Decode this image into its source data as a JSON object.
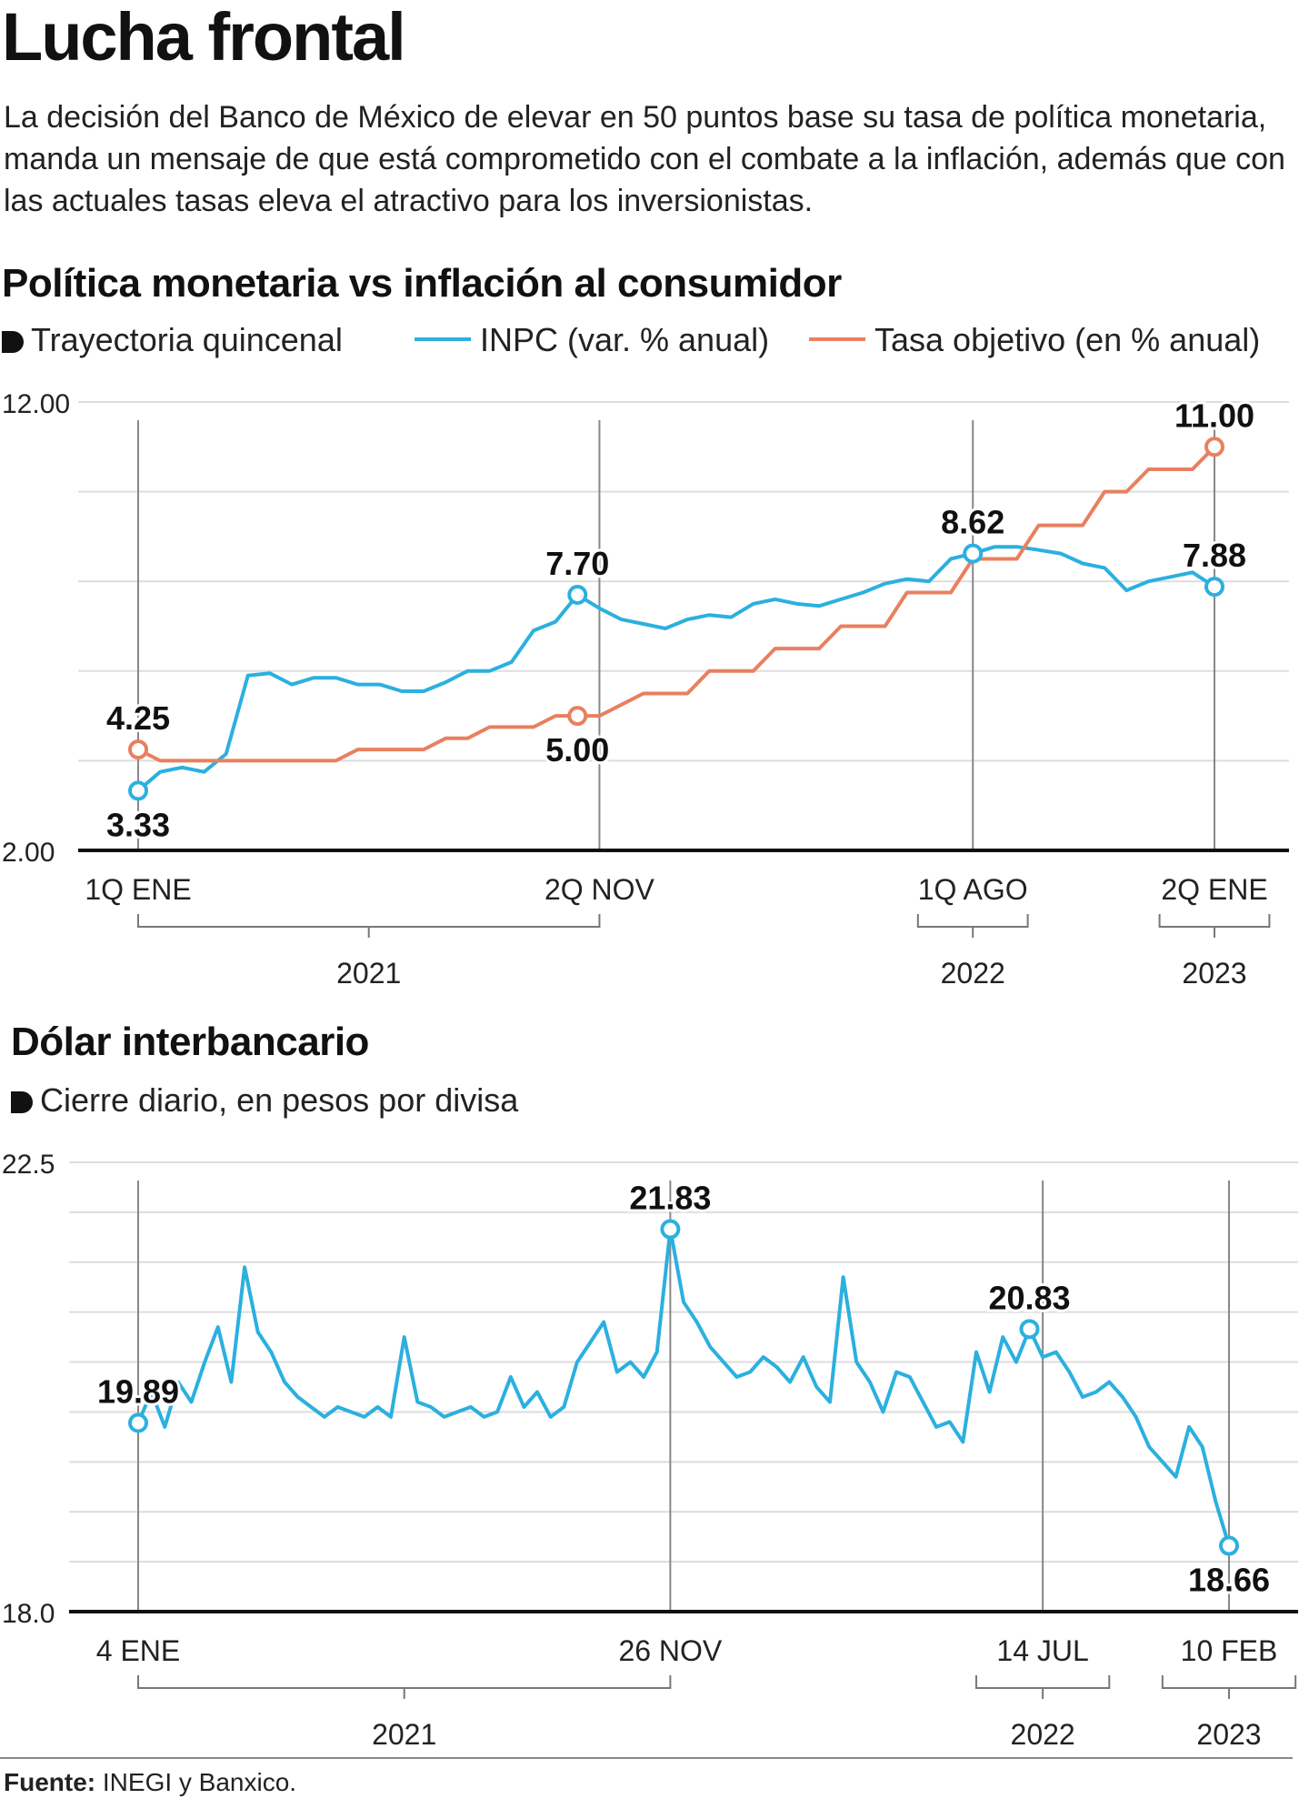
{
  "header": {
    "title": "Lucha frontal",
    "subtitle": "La decisión del Banco de México de elevar en 50 puntos base su tasa de política monetaria, manda un mensaje de que está comprometido con el combate a la inflación, además que con las actuales tasas eleva el atractivo para los inversionistas."
  },
  "source": {
    "label": "Fuente:",
    "text": "INEGI y Banxico."
  },
  "colors": {
    "inpc": "#2bb0df",
    "tasa": "#e8805f",
    "dolar": "#2bb0df",
    "axis": "#111111",
    "grid": "#dddddd"
  },
  "chart_data": [
    {
      "type": "line",
      "title": "Política monetaria vs inflación al consumidor",
      "note": "Trayectoria quincenal",
      "ylim": [
        2,
        12
      ],
      "ytick_labels": [
        "12.00",
        "2.00"
      ],
      "grid": true,
      "legend_position": "top",
      "x_count": 50,
      "x_ticks": [
        {
          "index": 0,
          "label": "1Q ENE"
        },
        {
          "index": 21,
          "label": "2Q NOV"
        },
        {
          "index": 38,
          "label": "1Q AGO"
        },
        {
          "index": 49,
          "label": "2Q ENE"
        }
      ],
      "year_groups": [
        {
          "label": "2021",
          "from": 0,
          "to": 21
        },
        {
          "label": "2022",
          "from": 35.5,
          "to": 40.5
        },
        {
          "label": "2023",
          "from": 46.5,
          "to": 51.5
        }
      ],
      "series": [
        {
          "name": "INPC (var. % anual)",
          "values": [
            3.33,
            3.75,
            3.85,
            3.75,
            4.15,
            5.9,
            5.95,
            5.7,
            5.85,
            5.85,
            5.7,
            5.7,
            5.55,
            5.55,
            5.75,
            6.0,
            6.0,
            6.2,
            6.9,
            7.1,
            7.7,
            7.4,
            7.15,
            7.05,
            6.95,
            7.15,
            7.25,
            7.2,
            7.5,
            7.6,
            7.5,
            7.45,
            7.6,
            7.75,
            7.95,
            8.05,
            8.0,
            8.5,
            8.62,
            8.77,
            8.77,
            8.7,
            8.62,
            8.4,
            8.3,
            7.8,
            8.0,
            8.1,
            8.2,
            7.88
          ],
          "labels": [
            {
              "index": 0,
              "text": "3.33",
              "pos": "below"
            },
            {
              "index": 20,
              "text": "7.70",
              "pos": "above"
            },
            {
              "index": 38,
              "text": "8.62",
              "pos": "above"
            },
            {
              "index": 49,
              "text": "7.88",
              "pos": "above"
            }
          ]
        },
        {
          "name": "Tasa objetivo (en % anual)",
          "values": [
            4.25,
            4.0,
            4.0,
            4.0,
            4.0,
            4.0,
            4.0,
            4.0,
            4.0,
            4.0,
            4.25,
            4.25,
            4.25,
            4.25,
            4.5,
            4.5,
            4.75,
            4.75,
            4.75,
            5.0,
            5.0,
            5.0,
            5.25,
            5.5,
            5.5,
            5.5,
            6.0,
            6.0,
            6.0,
            6.5,
            6.5,
            6.5,
            7.0,
            7.0,
            7.0,
            7.75,
            7.75,
            7.75,
            8.5,
            8.5,
            8.5,
            9.25,
            9.25,
            9.25,
            10.0,
            10.0,
            10.5,
            10.5,
            10.5,
            11.0
          ],
          "labels": [
            {
              "index": 0,
              "text": "4.25",
              "pos": "above"
            },
            {
              "index": 20,
              "text": "5.00",
              "pos": "below"
            },
            {
              "index": 49,
              "text": "11.00",
              "pos": "above"
            }
          ]
        }
      ]
    },
    {
      "type": "line",
      "title": "Dólar interbancario",
      "note": "Cierre diario, en pesos por divisa",
      "ylim": [
        18.0,
        22.5
      ],
      "ytick_labels": [
        "22.5",
        "18.0"
      ],
      "grid": true,
      "x_count": 83,
      "x_ticks": [
        {
          "index": 0,
          "label": "4 ENE"
        },
        {
          "index": 40,
          "label": "26 NOV"
        },
        {
          "index": 68,
          "label": "14 JUL"
        },
        {
          "index": 82,
          "label": "10 FEB"
        }
      ],
      "year_groups": [
        {
          "label": "2021",
          "from": 0,
          "to": 40
        },
        {
          "label": "2022",
          "from": 63,
          "to": 73
        },
        {
          "index_note": "",
          "label": "2023",
          "from": 77,
          "to": 87
        }
      ],
      "series": [
        {
          "name": "",
          "values": [
            19.89,
            20.2,
            19.85,
            20.3,
            20.1,
            20.5,
            20.85,
            20.3,
            21.45,
            20.8,
            20.6,
            20.3,
            20.15,
            20.05,
            19.95,
            20.05,
            20.0,
            19.95,
            20.05,
            19.95,
            20.75,
            20.1,
            20.05,
            19.95,
            20.0,
            20.05,
            19.95,
            20.0,
            20.35,
            20.05,
            20.2,
            19.95,
            20.05,
            20.5,
            20.7,
            20.9,
            20.4,
            20.5,
            20.35,
            20.6,
            21.83,
            21.1,
            20.9,
            20.65,
            20.5,
            20.35,
            20.4,
            20.55,
            20.45,
            20.3,
            20.55,
            20.25,
            20.1,
            21.35,
            20.5,
            20.3,
            20.0,
            20.4,
            20.35,
            20.1,
            19.85,
            19.9,
            19.7,
            20.6,
            20.2,
            20.75,
            20.5,
            20.83,
            20.55,
            20.6,
            20.4,
            20.15,
            20.2,
            20.3,
            20.15,
            19.95,
            19.65,
            19.5,
            19.35,
            19.85,
            19.65,
            19.1,
            18.66
          ],
          "labels": [
            {
              "index": 0,
              "text": "19.89",
              "pos": "above"
            },
            {
              "index": 40,
              "text": "21.83",
              "pos": "above"
            },
            {
              "index": 67,
              "text": "20.83",
              "pos": "above"
            },
            {
              "index": 82,
              "text": "18.66",
              "pos": "below"
            }
          ]
        }
      ]
    }
  ]
}
